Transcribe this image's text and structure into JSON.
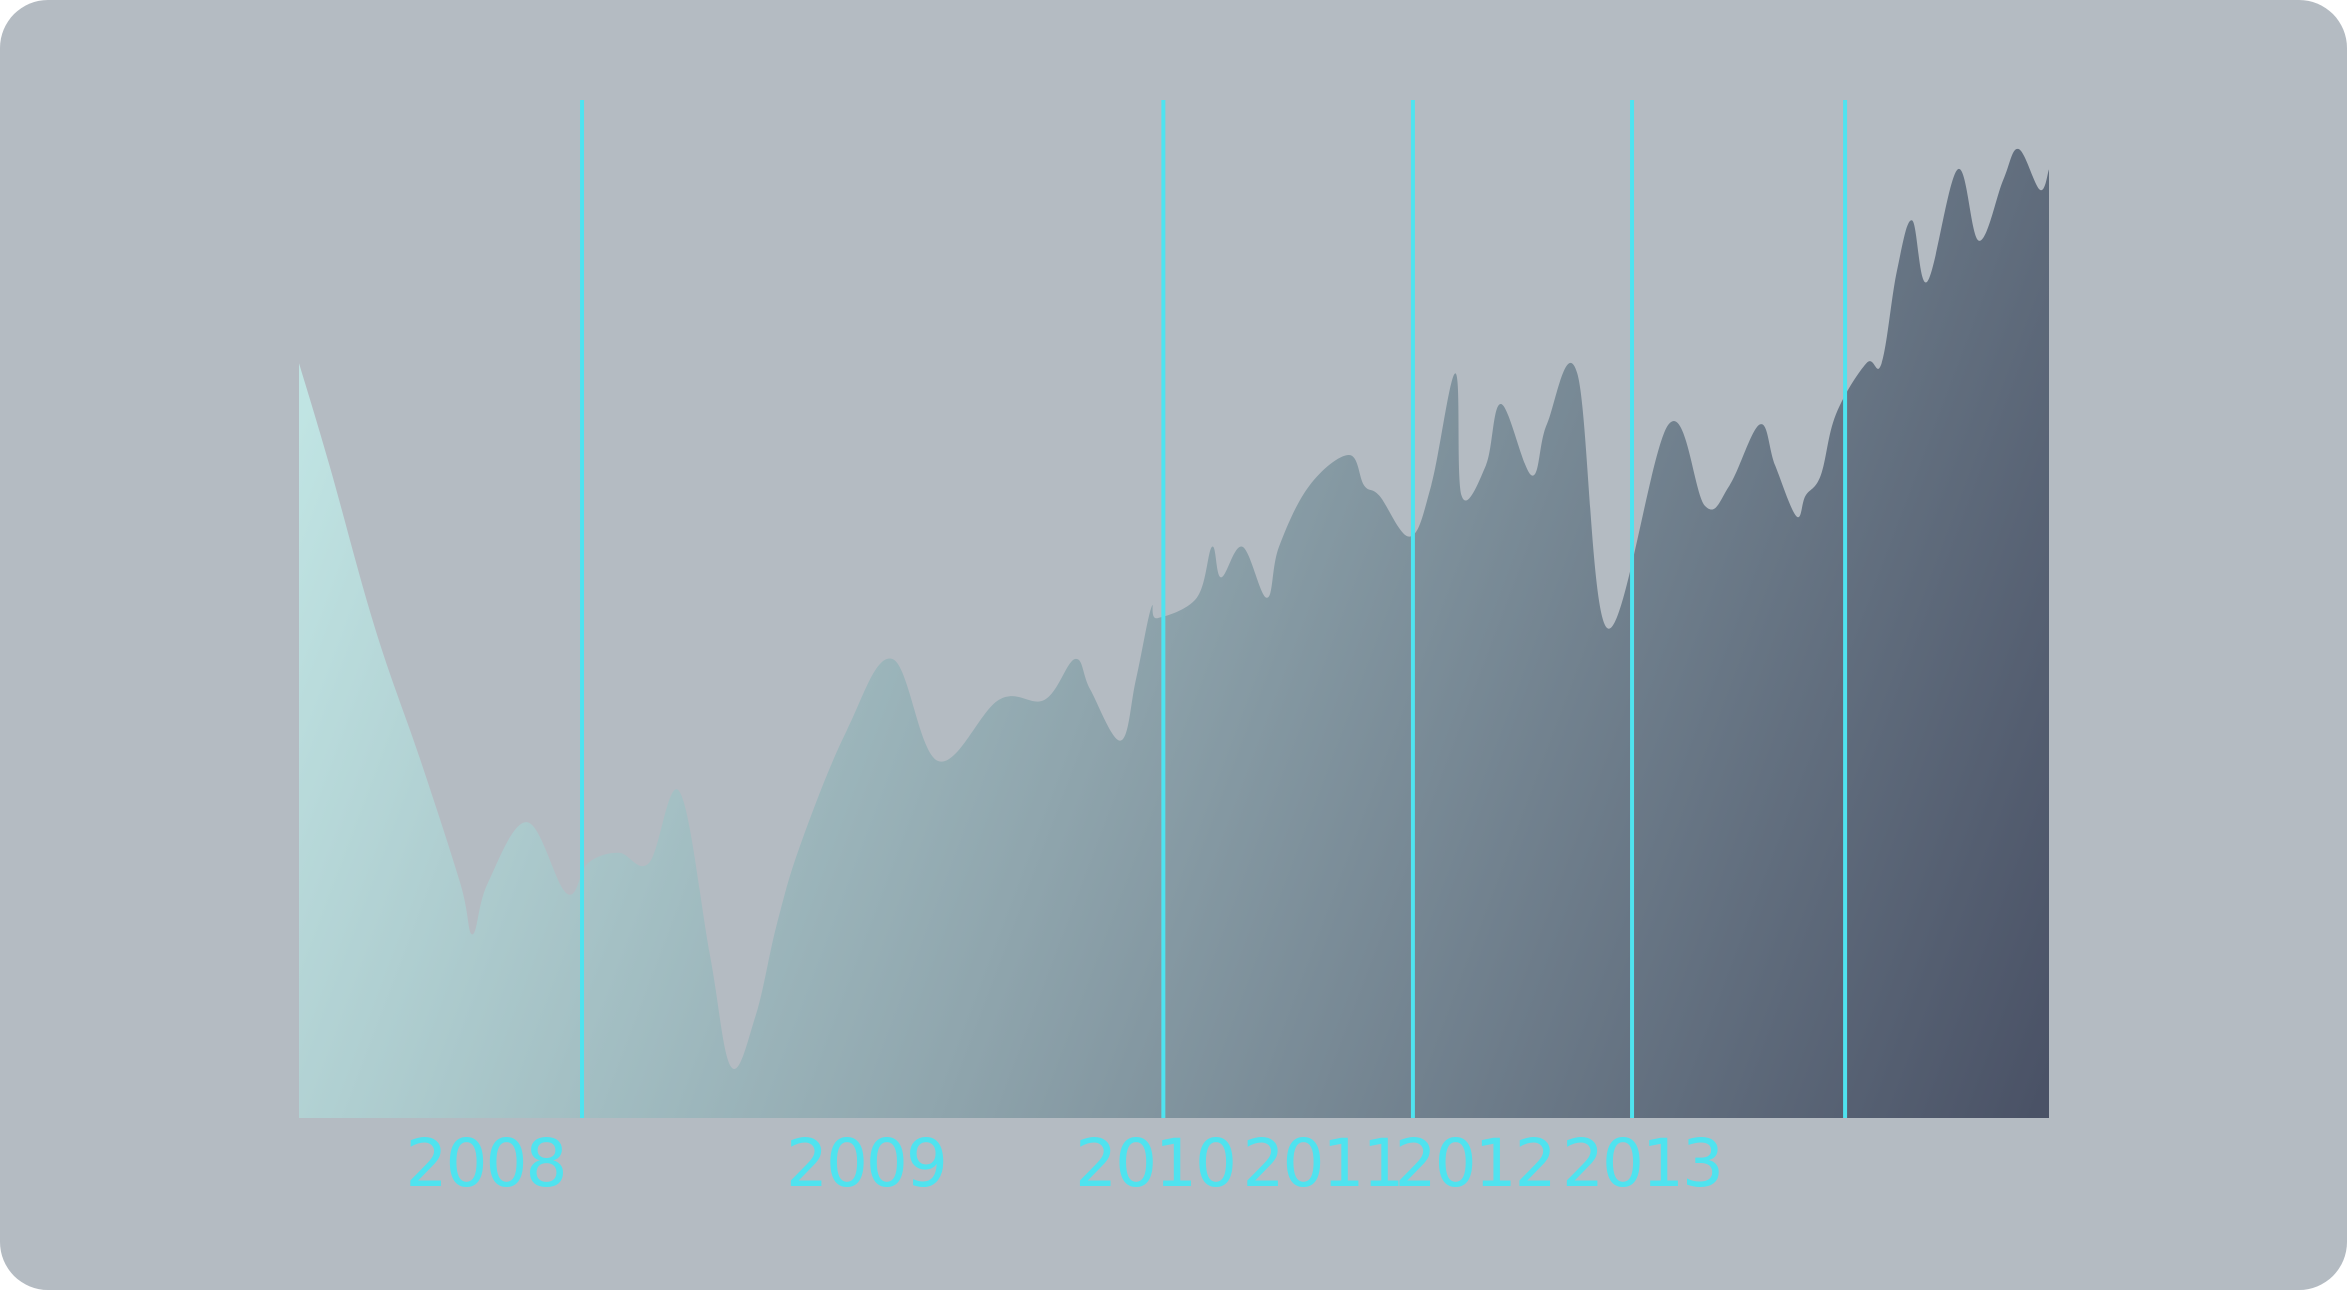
{
  "colors": {
    "background": "#b4bbc2",
    "divider": "#4fe3ef",
    "label": "#4fe3ef",
    "area_start": "#c0e4e3",
    "area_mid": "#8fa5ad",
    "area_end": "#4a5266"
  },
  "chart_data": {
    "type": "area",
    "title": "",
    "xlabel": "",
    "ylabel": "",
    "x_unit": "year",
    "xlim": [
      2008.0,
      2013.75
    ],
    "ylim": [
      0,
      100
    ],
    "grid": false,
    "legend": "none",
    "year_labels": [
      {
        "text": "2008",
        "x": 2008.35
      },
      {
        "text": "2009",
        "x": 2009.6
      },
      {
        "text": "2010",
        "x": 2010.55
      },
      {
        "text": "2011",
        "x": 2011.1
      },
      {
        "text": "2012",
        "x": 2011.6
      },
      {
        "text": "2013",
        "x": 2012.15
      }
    ],
    "dividers": [
      2008.93,
      2010.84,
      2011.66,
      2012.38,
      2013.08
    ],
    "series": [
      {
        "x": [
          2008.0,
          2008.1,
          2008.25,
          2008.4,
          2008.53,
          2008.57,
          2008.62,
          2008.75,
          2008.88,
          2008.95,
          2009.05,
          2009.15,
          2009.25,
          2009.35,
          2009.42,
          2009.5,
          2009.57,
          2009.65,
          2009.8,
          2009.95,
          2010.1,
          2010.3,
          2010.45,
          2010.55,
          2010.6,
          2010.7,
          2010.75,
          2010.8,
          2010.82,
          2010.95,
          2011.0,
          2011.03,
          2011.1,
          2011.18,
          2011.22,
          2011.32,
          2011.45,
          2011.5,
          2011.55,
          2011.65,
          2011.72,
          2011.8,
          2011.82,
          2011.9,
          2011.95,
          2012.05,
          2012.1,
          2012.2,
          2012.3,
          2012.5,
          2012.62,
          2012.7,
          2012.8,
          2012.85,
          2012.92,
          2012.95,
          2013.0,
          2013.05,
          2013.15,
          2013.2,
          2013.25,
          2013.3,
          2013.35,
          2013.45,
          2013.52,
          2013.6,
          2013.65,
          2013.72,
          2013.75
        ],
        "y": [
          74,
          64,
          48,
          35,
          23,
          18,
          23,
          29,
          22,
          25,
          26,
          25,
          32,
          16,
          5,
          10,
          19,
          27,
          38,
          45,
          35,
          41,
          41,
          45,
          42,
          37,
          43,
          50,
          49,
          51,
          56,
          53,
          56,
          51,
          56,
          62,
          65,
          62,
          61,
          57,
          62,
          73,
          61,
          64,
          70,
          63,
          68,
          73,
          48,
          68,
          60,
          62,
          68,
          64,
          59,
          61,
          63,
          69,
          74,
          74,
          83,
          88,
          82,
          93,
          86,
          92,
          95,
          91,
          93
        ]
      }
    ]
  }
}
